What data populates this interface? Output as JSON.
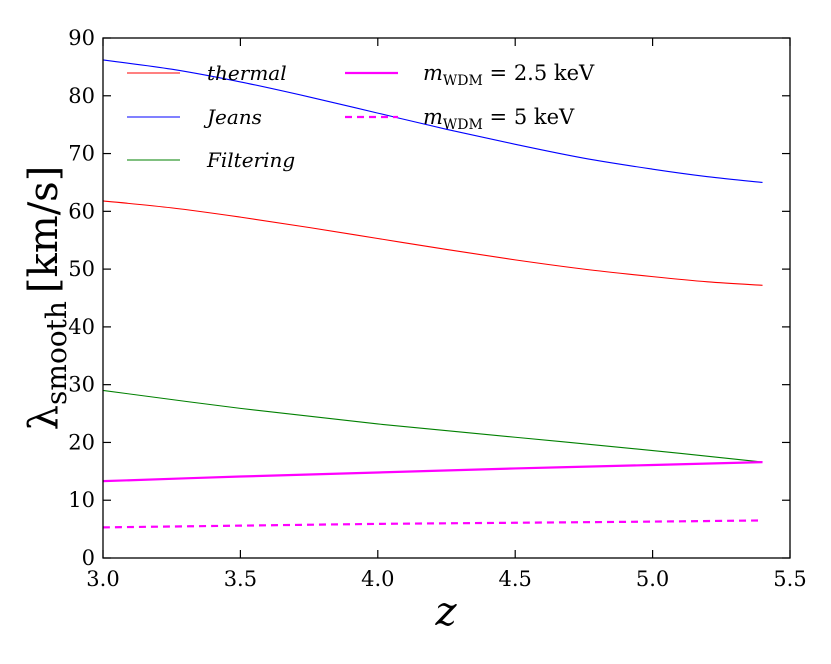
{
  "chart_data": {
    "type": "line",
    "title": "",
    "xlabel": "z",
    "ylabel_symbol": "λ",
    "ylabel_subscript": "smooth",
    "ylabel_units": "[km/s]",
    "xlim": [
      3.0,
      5.5
    ],
    "ylim": [
      0,
      90
    ],
    "xticks": [
      "3.0",
      "3.5",
      "4.0",
      "4.5",
      "5.0",
      "5.5"
    ],
    "yticks": [
      "0",
      "10",
      "20",
      "30",
      "40",
      "50",
      "60",
      "70",
      "80",
      "90"
    ],
    "legend_position": "top-left",
    "series": [
      {
        "name": "thermal",
        "color": "#ff0000",
        "style": "solid",
        "x": [
          3.0,
          3.25,
          3.5,
          3.75,
          4.0,
          4.25,
          4.5,
          4.75,
          5.0,
          5.2,
          5.4
        ],
        "y": [
          61.8,
          60.6,
          59.0,
          57.2,
          55.3,
          53.4,
          51.6,
          50.0,
          48.7,
          47.8,
          47.2
        ]
      },
      {
        "name": "Jeans",
        "color": "#0000ff",
        "style": "solid",
        "x": [
          3.0,
          3.25,
          3.5,
          3.75,
          4.0,
          4.25,
          4.5,
          4.75,
          5.0,
          5.2,
          5.4
        ],
        "y": [
          86.2,
          84.6,
          82.4,
          79.8,
          77.0,
          74.2,
          71.6,
          69.2,
          67.3,
          66.0,
          65.0
        ]
      },
      {
        "name": "Filtering",
        "color": "#008000",
        "style": "solid",
        "x": [
          3.0,
          3.5,
          4.0,
          4.5,
          5.0,
          5.4
        ],
        "y": [
          29.0,
          25.9,
          23.2,
          20.9,
          18.6,
          16.6
        ]
      },
      {
        "name_prefix": "m",
        "name_subscript": "WDM",
        "name_suffix": " = 2.5 keV",
        "color": "#ff00ff",
        "style": "solid-thick",
        "x": [
          3.0,
          3.5,
          4.0,
          4.5,
          5.0,
          5.4
        ],
        "y": [
          13.3,
          14.1,
          14.8,
          15.5,
          16.1,
          16.6
        ]
      },
      {
        "name_prefix": "m",
        "name_subscript": "WDM",
        "name_suffix": " = 5 keV",
        "color": "#ff00ff",
        "style": "dashed-thick",
        "x": [
          3.0,
          3.5,
          4.0,
          4.5,
          5.0,
          5.4
        ],
        "y": [
          5.3,
          5.6,
          5.9,
          6.1,
          6.3,
          6.5
        ]
      }
    ]
  }
}
